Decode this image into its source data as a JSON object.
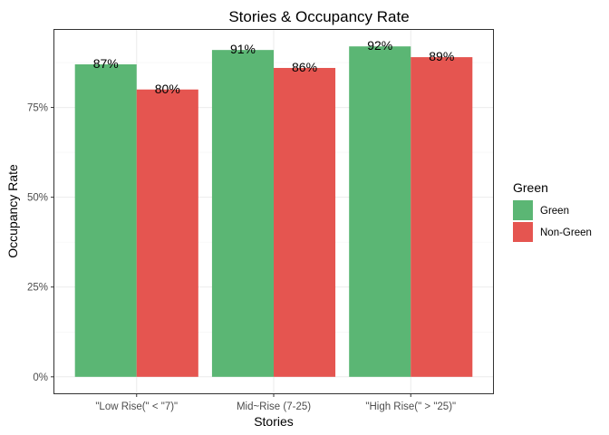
{
  "chart_data": {
    "type": "bar",
    "title": "Stories & Occupancy Rate",
    "xlabel": "Stories",
    "ylabel": "Occupancy Rate",
    "categories": [
      "\"Low Rise(\" < \"7)\"",
      "Mid~Rise (7-25)",
      "\"High Rise(\" > \"25)\""
    ],
    "series": [
      {
        "name": "Green",
        "values": [
          0.87,
          0.91,
          0.92
        ],
        "labels": [
          "87%",
          "91%",
          "92%"
        ],
        "color": "#5bb674"
      },
      {
        "name": "Non-Green",
        "values": [
          0.8,
          0.86,
          0.89
        ],
        "labels": [
          "80%",
          "86%",
          "89%"
        ],
        "color": "#e55550"
      }
    ],
    "yticks": [
      0,
      0.25,
      0.5,
      0.75
    ],
    "yticklabels": [
      "0%",
      "25%",
      "50%",
      "75%"
    ],
    "ylim": [
      -0.0459,
      0.9659
    ],
    "grid": true,
    "legend": {
      "title": "Green",
      "position": "right"
    }
  }
}
